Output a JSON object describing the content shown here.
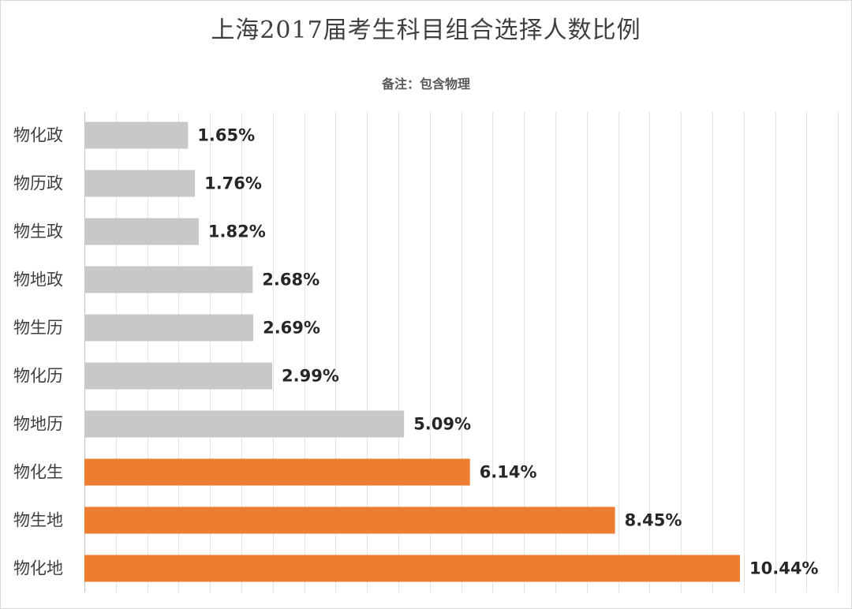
{
  "title": "上海2017届考生科目组合选择人数比例",
  "subtitle": "备注：包含物理",
  "colors": {
    "highlight": "#ED7D31",
    "normal": "#C8C8C8",
    "grid": "#E3E3E3"
  },
  "chart_data": {
    "type": "bar",
    "orientation": "horizontal",
    "title": "上海2017届考生科目组合选择人数比例",
    "subtitle": "备注：包含物理",
    "categories": [
      "物化政",
      "物历政",
      "物生政",
      "物地政",
      "物生历",
      "物化历",
      "物地历",
      "物化生",
      "物生地",
      "物化地"
    ],
    "values": [
      1.65,
      1.76,
      1.82,
      2.68,
      2.69,
      2.99,
      5.09,
      6.14,
      8.45,
      10.44
    ],
    "value_labels": [
      "1.65%",
      "1.76%",
      "1.82%",
      "2.68%",
      "2.69%",
      "2.99%",
      "5.09%",
      "6.14%",
      "8.45%",
      "10.44%"
    ],
    "highlighted": [
      false,
      false,
      false,
      false,
      false,
      false,
      false,
      true,
      true,
      true
    ],
    "xlim": [
      0,
      12.5
    ],
    "grid": true,
    "legend": "none"
  }
}
